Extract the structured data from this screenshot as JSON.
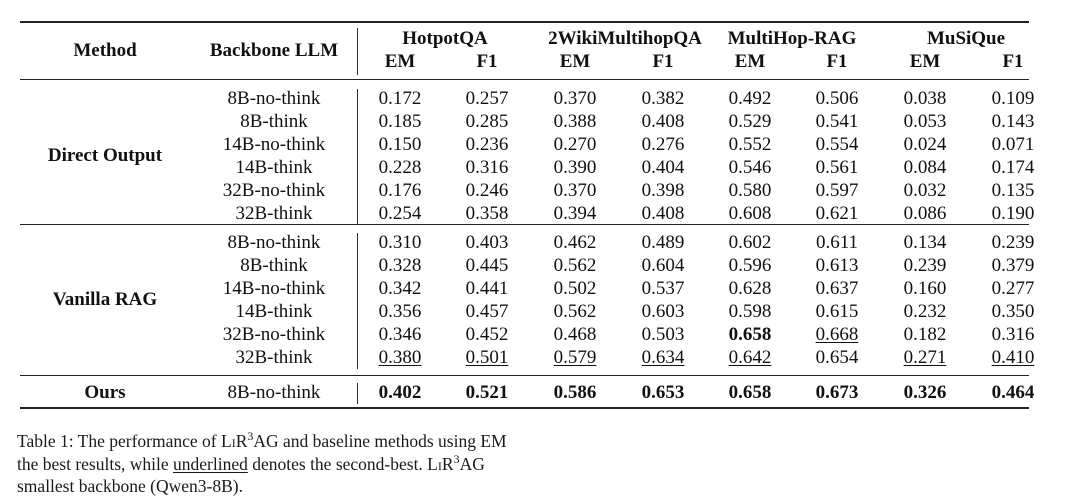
{
  "header": {
    "method": "Method",
    "backbone": "Backbone LLM",
    "datasets": [
      "HotpotQA",
      "2WikiMultihopQA",
      "MultiHop-RAG",
      "MuSiQue"
    ],
    "metrics": [
      "EM",
      "F1",
      "EM",
      "F1",
      "EM",
      "F1",
      "EM",
      "F1"
    ]
  },
  "groups": [
    {
      "name": "Direct Output",
      "rows": [
        {
          "backbone": "8B-no-think",
          "values": [
            "0.172",
            "0.257",
            "0.370",
            "0.382",
            "0.492",
            "0.506",
            "0.038",
            "0.109"
          ]
        },
        {
          "backbone": "8B-think",
          "values": [
            "0.185",
            "0.285",
            "0.388",
            "0.408",
            "0.529",
            "0.541",
            "0.053",
            "0.143"
          ]
        },
        {
          "backbone": "14B-no-think",
          "values": [
            "0.150",
            "0.236",
            "0.270",
            "0.276",
            "0.552",
            "0.554",
            "0.024",
            "0.071"
          ]
        },
        {
          "backbone": "14B-think",
          "values": [
            "0.228",
            "0.316",
            "0.390",
            "0.404",
            "0.546",
            "0.561",
            "0.084",
            "0.174"
          ]
        },
        {
          "backbone": "32B-no-think",
          "values": [
            "0.176",
            "0.246",
            "0.370",
            "0.398",
            "0.580",
            "0.597",
            "0.032",
            "0.135"
          ]
        },
        {
          "backbone": "32B-think",
          "values": [
            "0.254",
            "0.358",
            "0.394",
            "0.408",
            "0.608",
            "0.621",
            "0.086",
            "0.190"
          ]
        }
      ]
    },
    {
      "name": "Vanilla RAG",
      "rows": [
        {
          "backbone": "8B-no-think",
          "values": [
            "0.310",
            "0.403",
            "0.462",
            "0.489",
            "0.602",
            "0.611",
            "0.134",
            "0.239"
          ]
        },
        {
          "backbone": "8B-think",
          "values": [
            "0.328",
            "0.445",
            "0.562",
            "0.604",
            "0.596",
            "0.613",
            "0.239",
            "0.379"
          ]
        },
        {
          "backbone": "14B-no-think",
          "values": [
            "0.342",
            "0.441",
            "0.502",
            "0.537",
            "0.628",
            "0.637",
            "0.160",
            "0.277"
          ]
        },
        {
          "backbone": "14B-think",
          "values": [
            "0.356",
            "0.457",
            "0.562",
            "0.603",
            "0.598",
            "0.615",
            "0.232",
            "0.350"
          ]
        },
        {
          "backbone": "32B-no-think",
          "values": [
            "0.346",
            "0.452",
            "0.468",
            "0.503",
            "0.658",
            "0.668",
            "0.182",
            "0.316"
          ],
          "bold": [
            4
          ],
          "underline": [
            5
          ]
        },
        {
          "backbone": "32B-think",
          "values": [
            "0.380",
            "0.501",
            "0.579",
            "0.634",
            "0.642",
            "0.654",
            "0.271",
            "0.410"
          ],
          "underline": [
            0,
            1,
            2,
            3,
            4,
            6,
            7
          ]
        }
      ]
    },
    {
      "name": "Ours",
      "rows": [
        {
          "backbone": "8B-no-think",
          "values": [
            "0.402",
            "0.521",
            "0.586",
            "0.653",
            "0.658",
            "0.673",
            "0.326",
            "0.464"
          ],
          "bold": [
            0,
            1,
            2,
            3,
            4,
            5,
            6,
            7
          ]
        }
      ]
    }
  ],
  "caption": {
    "line1_a": "Table 1: The performance of L",
    "line1_sc": "i",
    "line1_b": "R",
    "line1_sup": "3",
    "line1_c": "AG and baseline methods using EM",
    "line2_a": "the best results, while ",
    "line2_u": "underlined",
    "line2_b": " denotes the second-best. L",
    "line2_sc": "i",
    "line2_c": "R",
    "line2_sup": "3",
    "line2_d": "AG",
    "line3": "smallest backbone (Qwen3-8B)."
  }
}
